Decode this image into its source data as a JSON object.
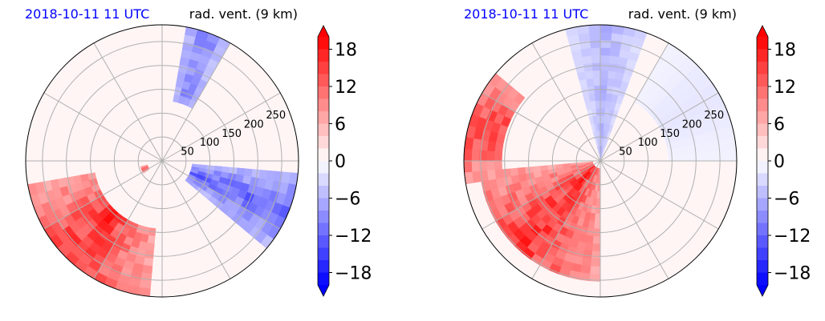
{
  "chart_data": [
    {
      "type": "heatmap",
      "projection": "polar",
      "title_left": "2018-10-11 11 UTC",
      "title_right": "rad. vent. (9 km)",
      "title_left_color": "#0000ff",
      "radial_ticks": [
        "50",
        "100",
        "150",
        "200",
        "250"
      ],
      "radial_values": [
        50,
        100,
        150,
        200,
        250
      ],
      "rlim": [
        0,
        285
      ],
      "angular_grid_deg": [
        0,
        30,
        60,
        90,
        120,
        150,
        180,
        210,
        240,
        270,
        300,
        330
      ],
      "grid": true,
      "colorbar": {
        "ticks": [
          "18",
          "12",
          "6",
          "0",
          "−6",
          "−12",
          "−18"
        ],
        "tick_values": [
          18,
          12,
          6,
          0,
          -6,
          -12,
          -18
        ],
        "range": [
          -20,
          20
        ],
        "levels": 20,
        "cmap": "bwr",
        "extend": "both"
      },
      "features": [
        {
          "label": "positive",
          "theta_deg": [
            190,
            265
          ],
          "r": [
            140,
            285
          ],
          "value": 16
        },
        {
          "label": "negative",
          "theta_deg": [
            60,
            80
          ],
          "r": [
            120,
            285
          ],
          "value": -10
        },
        {
          "label": "negative",
          "theta_deg": [
            -40,
            -5
          ],
          "r": [
            60,
            285
          ],
          "value": -12
        },
        {
          "label": "positive",
          "theta_deg": [
            195,
            215
          ],
          "r": [
            30,
            55
          ],
          "value": 14
        }
      ]
    },
    {
      "type": "heatmap",
      "projection": "polar",
      "title_left": "2018-10-11 11 UTC",
      "title_right": "rad. vent. (9 km)",
      "title_left_color": "#0000ff",
      "radial_ticks": [
        "50",
        "100",
        "150",
        "200",
        "250"
      ],
      "radial_values": [
        50,
        100,
        150,
        200,
        250
      ],
      "rlim": [
        0,
        285
      ],
      "angular_grid_deg": [
        0,
        30,
        60,
        90,
        120,
        150,
        180,
        210,
        240,
        270,
        300,
        330
      ],
      "grid": true,
      "colorbar": {
        "ticks": [
          "18",
          "12",
          "6",
          "0",
          "−6",
          "−12",
          "−18"
        ],
        "tick_values": [
          18,
          12,
          6,
          0,
          -6,
          -12,
          -18
        ],
        "range": [
          -20,
          20
        ],
        "levels": 20,
        "cmap": "bwr",
        "extend": "both"
      },
      "features": [
        {
          "label": "positive",
          "theta_deg": [
            185,
            270
          ],
          "r": [
            20,
            260
          ],
          "value": 16
        },
        {
          "label": "positive",
          "theta_deg": [
            140,
            190
          ],
          "r": [
            200,
            285
          ],
          "value": 16
        },
        {
          "label": "negative",
          "theta_deg": [
            70,
            105
          ],
          "r": [
            0,
            285
          ],
          "value": -6
        },
        {
          "label": "negative",
          "theta_deg": [
            0,
            60
          ],
          "r": [
            150,
            285
          ],
          "value": -2
        }
      ]
    }
  ]
}
